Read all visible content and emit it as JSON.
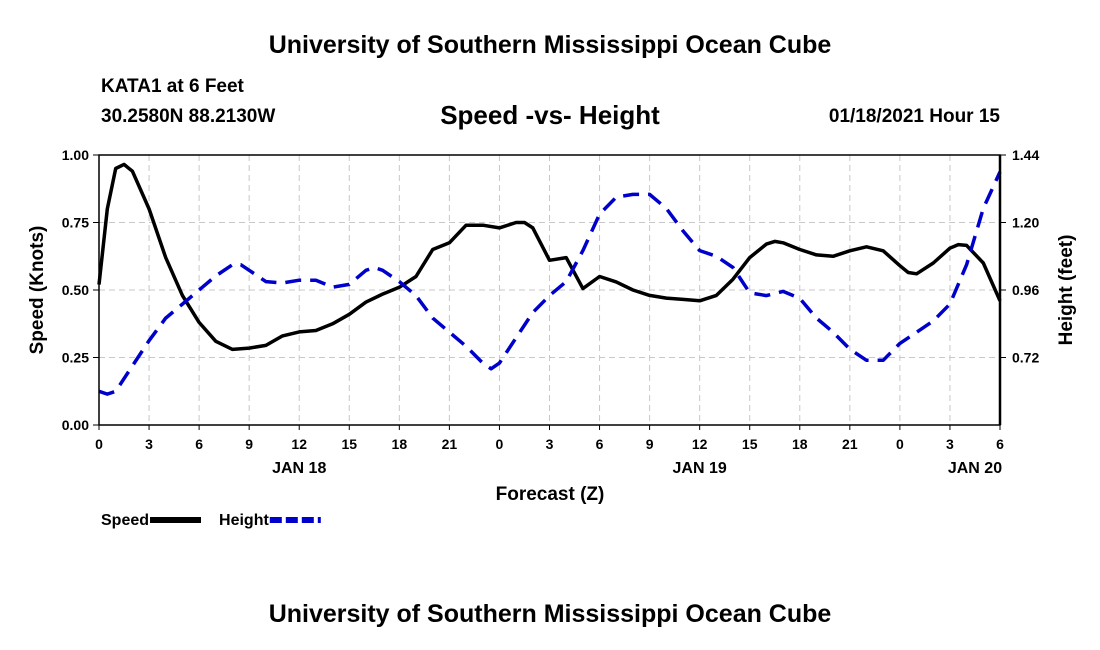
{
  "header": {
    "title": "University of Southern Mississippi Ocean Cube",
    "station": "KATA1 at 6 Feet",
    "coords": "30.2580N 88.2130W",
    "run_time": "01/18/2021 Hour 15"
  },
  "footer": {
    "title": "University of Southern Mississippi Ocean Cube"
  },
  "chart_data": {
    "type": "line",
    "title": "Speed -vs- Height",
    "xlabel": "Forecast (Z)",
    "ylabel": "Speed (Knots)",
    "y2label": "Height (feet)",
    "xlim": [
      0,
      54
    ],
    "ylim": [
      0,
      1.0
    ],
    "y2lim": [
      0.48,
      1.44
    ],
    "x_ticks": [
      0,
      3,
      6,
      9,
      12,
      15,
      18,
      21,
      24,
      27,
      30,
      33,
      36,
      39,
      42,
      45,
      48,
      51,
      54
    ],
    "x_tick_labels": [
      "0",
      "3",
      "6",
      "9",
      "12",
      "15",
      "18",
      "21",
      "0",
      "3",
      "6",
      "9",
      "12",
      "15",
      "18",
      "21",
      "0",
      "3",
      "6"
    ],
    "y_ticks": [
      "0.00",
      "0.25",
      "0.50",
      "0.75",
      "1.00"
    ],
    "y2_ticks": [
      "0.72",
      "0.96",
      "1.20",
      "1.44"
    ],
    "day_labels": [
      {
        "x": 12,
        "label": "JAN 18"
      },
      {
        "x": 36,
        "label": "JAN 19"
      },
      {
        "x": 52.5,
        "label": "JAN 20"
      }
    ],
    "legend_position": "bottom-left",
    "grid": true,
    "series": [
      {
        "name": "Speed",
        "axis": "left",
        "color": "#000000",
        "style": "solid",
        "points": [
          [
            0,
            0.52
          ],
          [
            0.5,
            0.8
          ],
          [
            1,
            0.95
          ],
          [
            1.5,
            0.965
          ],
          [
            2,
            0.94
          ],
          [
            3,
            0.8
          ],
          [
            4,
            0.62
          ],
          [
            5,
            0.48
          ],
          [
            6,
            0.38
          ],
          [
            7,
            0.31
          ],
          [
            8,
            0.28
          ],
          [
            9,
            0.285
          ],
          [
            10,
            0.295
          ],
          [
            11,
            0.33
          ],
          [
            12,
            0.345
          ],
          [
            13,
            0.35
          ],
          [
            14,
            0.375
          ],
          [
            15,
            0.41
          ],
          [
            16,
            0.455
          ],
          [
            17,
            0.485
          ],
          [
            18,
            0.51
          ],
          [
            19,
            0.55
          ],
          [
            20,
            0.65
          ],
          [
            21,
            0.675
          ],
          [
            22,
            0.74
          ],
          [
            23,
            0.74
          ],
          [
            24,
            0.73
          ],
          [
            25,
            0.75
          ],
          [
            25.5,
            0.75
          ],
          [
            26,
            0.73
          ],
          [
            27,
            0.61
          ],
          [
            28,
            0.62
          ],
          [
            29,
            0.505
          ],
          [
            30,
            0.55
          ],
          [
            31,
            0.53
          ],
          [
            32,
            0.5
          ],
          [
            33,
            0.48
          ],
          [
            34,
            0.47
          ],
          [
            35,
            0.465
          ],
          [
            36,
            0.46
          ],
          [
            37,
            0.48
          ],
          [
            38,
            0.54
          ],
          [
            39,
            0.62
          ],
          [
            40,
            0.67
          ],
          [
            40.5,
            0.68
          ],
          [
            41,
            0.675
          ],
          [
            42,
            0.65
          ],
          [
            43,
            0.63
          ],
          [
            44,
            0.625
          ],
          [
            45,
            0.645
          ],
          [
            46,
            0.66
          ],
          [
            47,
            0.645
          ],
          [
            48,
            0.59
          ],
          [
            48.5,
            0.565
          ],
          [
            49,
            0.56
          ],
          [
            50,
            0.6
          ],
          [
            51,
            0.655
          ],
          [
            51.5,
            0.668
          ],
          [
            52,
            0.665
          ],
          [
            53,
            0.6
          ],
          [
            54,
            0.46
          ]
        ]
      },
      {
        "name": "Height",
        "axis": "right",
        "color": "#0000cc",
        "style": "dashed",
        "points": [
          [
            0,
            0.6
          ],
          [
            0.5,
            0.59
          ],
          [
            1,
            0.6
          ],
          [
            2,
            0.69
          ],
          [
            3,
            0.78
          ],
          [
            4,
            0.86
          ],
          [
            5,
            0.91
          ],
          [
            6,
            0.96
          ],
          [
            7,
            1.01
          ],
          [
            8,
            1.05
          ],
          [
            8.5,
            1.05
          ],
          [
            9,
            1.03
          ],
          [
            10,
            0.99
          ],
          [
            11,
            0.985
          ],
          [
            12,
            0.995
          ],
          [
            13,
            0.995
          ],
          [
            14,
            0.97
          ],
          [
            15,
            0.98
          ],
          [
            16,
            1.03
          ],
          [
            16.5,
            1.04
          ],
          [
            17,
            1.03
          ],
          [
            18,
            0.99
          ],
          [
            19,
            0.94
          ],
          [
            20,
            0.86
          ],
          [
            21,
            0.81
          ],
          [
            22,
            0.76
          ],
          [
            23,
            0.7
          ],
          [
            23.5,
            0.68
          ],
          [
            24,
            0.7
          ],
          [
            25,
            0.79
          ],
          [
            26,
            0.88
          ],
          [
            27,
            0.94
          ],
          [
            28,
            0.99
          ],
          [
            29,
            1.1
          ],
          [
            30,
            1.23
          ],
          [
            31,
            1.29
          ],
          [
            32,
            1.3
          ],
          [
            33,
            1.3
          ],
          [
            34,
            1.25
          ],
          [
            35,
            1.17
          ],
          [
            36,
            1.1
          ],
          [
            37,
            1.08
          ],
          [
            38,
            1.04
          ],
          [
            39,
            0.95
          ],
          [
            40,
            0.94
          ],
          [
            41,
            0.955
          ],
          [
            42,
            0.93
          ],
          [
            43,
            0.86
          ],
          [
            44,
            0.81
          ],
          [
            45,
            0.75
          ],
          [
            46,
            0.71
          ],
          [
            47,
            0.71
          ],
          [
            48,
            0.77
          ],
          [
            49,
            0.81
          ],
          [
            50,
            0.85
          ],
          [
            51,
            0.91
          ],
          [
            52,
            1.05
          ],
          [
            53,
            1.25
          ],
          [
            54,
            1.38
          ]
        ]
      }
    ]
  }
}
